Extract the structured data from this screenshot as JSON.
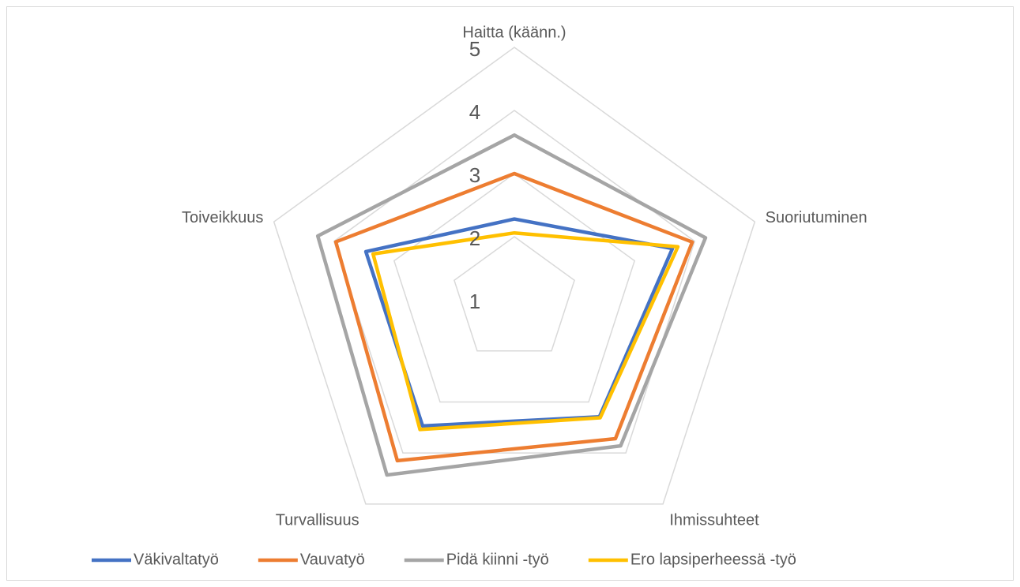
{
  "chart_data": {
    "type": "radar",
    "categories": [
      "Haitta (käänn.)",
      "Suoriutuminen",
      "Ihmissuhteet",
      "Turvallisuus",
      "Toiveikkuus"
    ],
    "series": [
      {
        "name": "Väkivaltatyö",
        "color": "#4472c4",
        "values": [
          2.28,
          3.63,
          3.29,
          3.47,
          3.47
        ]
      },
      {
        "name": "Vauvatyö",
        "color": "#ed7d31",
        "values": [
          3.0,
          3.96,
          3.72,
          4.15,
          3.97
        ]
      },
      {
        "name": "Pidä kiinni -työ",
        "color": "#a5a5a5",
        "values": [
          3.61,
          4.18,
          3.86,
          4.43,
          4.27
        ]
      },
      {
        "name": "Ero lapsiperheessä -työ",
        "color": "#ffc000",
        "values": [
          2.06,
          3.72,
          3.31,
          3.54,
          3.35
        ]
      }
    ],
    "rlim": [
      1,
      5
    ],
    "rticks": [
      1,
      2,
      3,
      4,
      5
    ],
    "grid": true,
    "legend": "bottom"
  }
}
